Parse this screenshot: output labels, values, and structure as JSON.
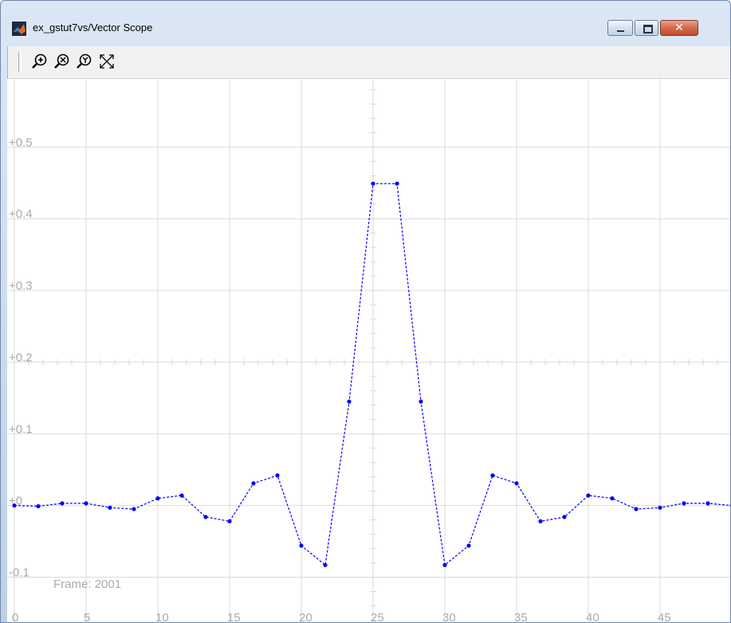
{
  "window": {
    "title": "ex_gstut7vs/Vector Scope",
    "close_glyph": "✕"
  },
  "toolbar": {
    "tools": [
      {
        "name": "zoom-in-icon",
        "label": "Zoom In"
      },
      {
        "name": "zoom-x-icon",
        "label": "Zoom X"
      },
      {
        "name": "zoom-y-icon",
        "label": "Zoom Y"
      },
      {
        "name": "autoscale-icon",
        "label": "Autoscale"
      }
    ]
  },
  "colors": {
    "trace": "#0000ff",
    "grid": "#d9d9d9",
    "text": "#aaaaaa"
  },
  "frame_label": "Frame: 2001",
  "chart_data": {
    "type": "line",
    "title": "",
    "xlabel": "",
    "ylabel": "",
    "xlim": [
      -0.5,
      50
    ],
    "ylim": [
      -0.165,
      0.595
    ],
    "x_ticks": [
      "0",
      "5",
      "10",
      "15",
      "20",
      "25",
      "30",
      "35",
      "40",
      "45"
    ],
    "x_tick_values": [
      0,
      5,
      10,
      15,
      20,
      25,
      30,
      35,
      40,
      45
    ],
    "y_ticks": [
      "-0.1",
      "+0",
      "+0.1",
      "+0.2",
      "+0.3",
      "+0.4",
      "+0.5"
    ],
    "y_tick_values": [
      -0.1,
      0,
      0.1,
      0.2,
      0.3,
      0.4,
      0.5
    ],
    "grid": true,
    "series": [
      {
        "x": [
          0,
          1.6667,
          3.3333,
          5,
          6.6667,
          8.3333,
          10,
          11.6667,
          13.3333,
          15,
          16.6667,
          18.3333,
          20,
          21.6667,
          23.3333,
          25,
          26.6667,
          28.3333,
          30,
          31.6667,
          33.3333,
          35,
          36.6667,
          38.3333,
          40,
          41.6667,
          43.3333,
          45,
          46.6667,
          48.3333,
          50
        ],
        "values": [
          0.0,
          -0.001,
          0.003,
          0.003,
          -0.003,
          -0.005,
          0.01,
          0.014,
          -0.016,
          -0.022,
          0.031,
          0.042,
          -0.056,
          -0.083,
          0.145,
          0.449,
          0.449,
          0.145,
          -0.083,
          -0.056,
          0.042,
          0.031,
          -0.022,
          -0.016,
          0.014,
          0.01,
          -0.005,
          -0.003,
          0.003,
          0.003,
          0.0
        ]
      }
    ]
  }
}
